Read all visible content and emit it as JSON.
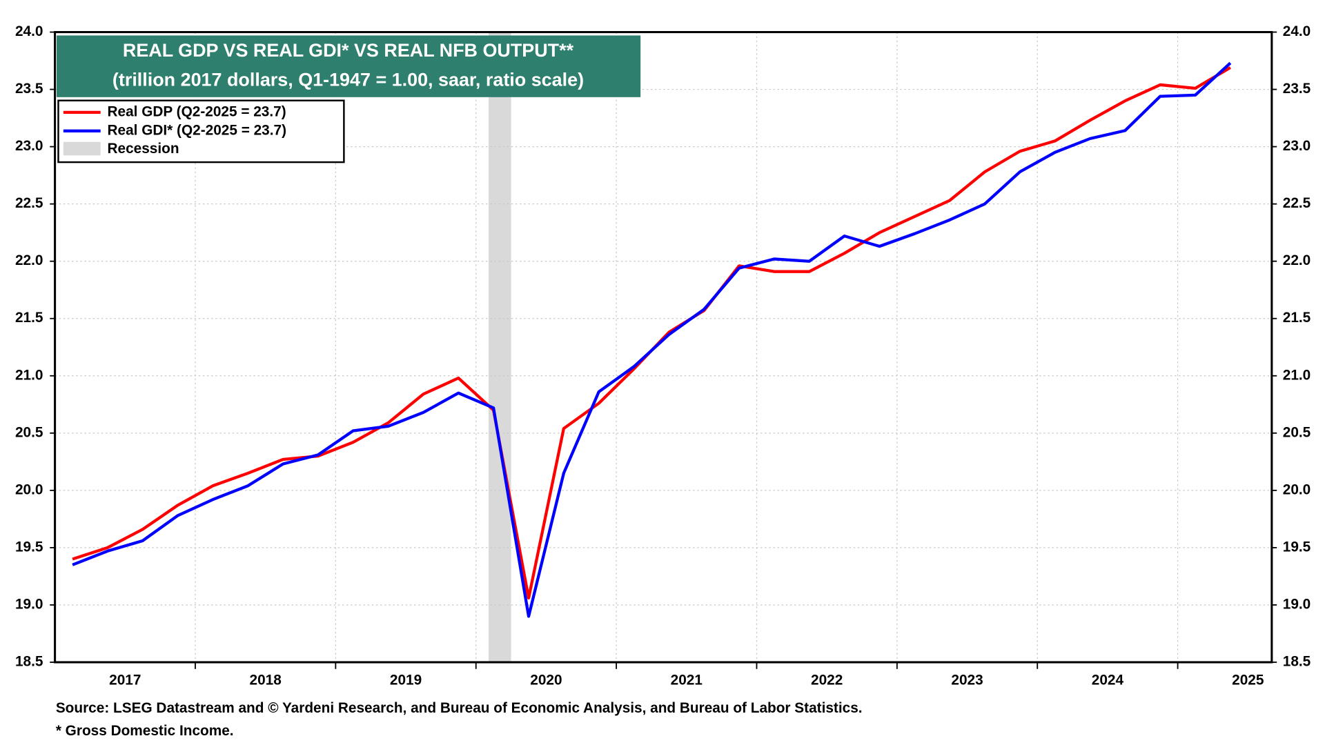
{
  "chart_data": {
    "type": "line",
    "title": "REAL GDP VS REAL GDI* VS REAL NFB OUTPUT**",
    "subtitle": "(trillion 2017 dollars, Q1-1947 = 1.00, saar, ratio scale)",
    "source": "Source: LSEG Datastream and © Yardeni Research, and Bureau of Economic Analysis, and Bureau of Labor Statistics.",
    "footnote": "* Gross Domestic Income.",
    "x": [
      2017.125,
      2017.375,
      2017.625,
      2017.875,
      2018.125,
      2018.375,
      2018.625,
      2018.875,
      2019.125,
      2019.375,
      2019.625,
      2019.875,
      2020.125,
      2020.375,
      2020.625,
      2020.875,
      2021.125,
      2021.375,
      2021.625,
      2021.875,
      2022.125,
      2022.375,
      2022.625,
      2022.875,
      2023.125,
      2023.375,
      2023.625,
      2023.875,
      2024.125,
      2024.375,
      2024.625,
      2024.875,
      2025.125,
      2025.375
    ],
    "series": [
      {
        "name": "Real GDP (Q2-2025 = 23.7)",
        "color": "#ff0000",
        "values": [
          19.4,
          19.5,
          19.66,
          19.87,
          20.04,
          20.15,
          20.27,
          20.3,
          20.42,
          20.59,
          20.84,
          20.98,
          20.7,
          19.06,
          20.54,
          20.76,
          21.06,
          21.38,
          21.57,
          21.96,
          21.91,
          21.91,
          22.07,
          22.25,
          22.39,
          22.53,
          22.78,
          22.96,
          23.05,
          23.23,
          23.4,
          23.54,
          23.51,
          23.69
        ]
      },
      {
        "name": "Real GDI* (Q2-2025 = 23.7)",
        "color": "#0000ff",
        "values": [
          19.35,
          19.47,
          19.56,
          19.78,
          19.92,
          20.04,
          20.23,
          20.31,
          20.52,
          20.56,
          20.68,
          20.85,
          20.72,
          18.9,
          20.15,
          20.86,
          21.08,
          21.36,
          21.58,
          21.94,
          22.02,
          22.0,
          22.22,
          22.13,
          22.24,
          22.36,
          22.5,
          22.78,
          22.95,
          23.07,
          23.14,
          23.44,
          23.45,
          23.73
        ]
      }
    ],
    "recession": {
      "name": "Recession",
      "color": "#d9d9d9",
      "span": [
        2020.09,
        2020.25
      ]
    },
    "xlim": [
      2017,
      2025.67
    ],
    "xticks": [
      {
        "value": 2017.5,
        "label": "2017"
      },
      {
        "value": 2018.5,
        "label": "2018"
      },
      {
        "value": 2019.5,
        "label": "2019"
      },
      {
        "value": 2020.5,
        "label": "2020"
      },
      {
        "value": 2021.5,
        "label": "2021"
      },
      {
        "value": 2022.5,
        "label": "2022"
      },
      {
        "value": 2023.5,
        "label": "2023"
      },
      {
        "value": 2024.5,
        "label": "2024"
      },
      {
        "value": 2025.5,
        "label": "2025"
      }
    ],
    "xgridlines": [
      2018,
      2019,
      2020,
      2021,
      2022,
      2023,
      2024,
      2025
    ],
    "ylim": [
      18.5,
      24.0
    ],
    "yticks": [
      {
        "value": 18.5,
        "label": "18.5"
      },
      {
        "value": 19,
        "label": "19.0"
      },
      {
        "value": 19.5,
        "label": "19.5"
      },
      {
        "value": 20,
        "label": "20.0"
      },
      {
        "value": 20.5,
        "label": "20.5"
      },
      {
        "value": 21,
        "label": "21.0"
      },
      {
        "value": 21.5,
        "label": "21.5"
      },
      {
        "value": 22,
        "label": "22.0"
      },
      {
        "value": 22.5,
        "label": "22.5"
      },
      {
        "value": 23,
        "label": "23.0"
      },
      {
        "value": 23.5,
        "label": "23.5"
      },
      {
        "value": 24,
        "label": "24.0"
      }
    ],
    "grid": true
  }
}
